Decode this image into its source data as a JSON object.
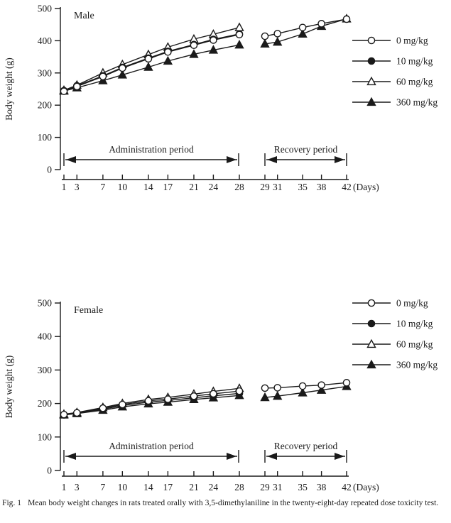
{
  "figure": {
    "caption_label": "Fig. 1",
    "caption_text": "Mean body weight changes in rats treated orally with 3,5-dimethylaniline in the twenty-eight-day repeated dose toxicity test."
  },
  "colors": {
    "ink": "#1a1a1a",
    "background": "#ffffff"
  },
  "legend": [
    {
      "label": "0 mg/kg",
      "marker": "circle-open"
    },
    {
      "label": "10 mg/kg",
      "marker": "circle-filled"
    },
    {
      "label": "60 mg/kg",
      "marker": "triangle-open"
    },
    {
      "label": "360 mg/kg",
      "marker": "triangle-filled"
    }
  ],
  "chart_data": [
    {
      "type": "line",
      "title": "Male",
      "ylabel": "Body weight (g)",
      "x_axis_unit_label": "(Days)",
      "ylim": [
        0,
        500
      ],
      "yticks": [
        0,
        100,
        200,
        300,
        400,
        500
      ],
      "admin_days": [
        1,
        3,
        7,
        10,
        14,
        17,
        21,
        24,
        28
      ],
      "recovery_days": [
        29,
        31,
        35,
        38,
        42
      ],
      "admin_period_label": "Administration period",
      "recovery_period_label": "Recovery period",
      "legend_position": "right",
      "grid": false,
      "series": [
        {
          "name": "0 mg/kg",
          "marker": "circle-open",
          "admin_values": [
            243,
            258,
            289,
            315,
            344,
            365,
            386,
            402,
            419
          ],
          "recovery_values": [
            414,
            422,
            441,
            453,
            467
          ]
        },
        {
          "name": "10 mg/kg",
          "marker": "circle-filled",
          "admin_values": [
            245,
            260,
            291,
            317,
            346,
            367,
            388,
            404,
            421
          ],
          "recovery_values": null
        },
        {
          "name": "60 mg/kg",
          "marker": "triangle-open",
          "admin_values": [
            246,
            262,
            300,
            326,
            357,
            380,
            405,
            420,
            441
          ],
          "recovery_values": null
        },
        {
          "name": "360 mg/kg",
          "marker": "triangle-filled",
          "admin_values": [
            244,
            254,
            276,
            294,
            318,
            337,
            358,
            371,
            387
          ],
          "recovery_values": [
            390,
            396,
            421,
            445,
            468
          ]
        }
      ]
    },
    {
      "type": "line",
      "title": "Female",
      "ylabel": "Body weight (g)",
      "x_axis_unit_label": "(Days)",
      "ylim": [
        0,
        500
      ],
      "yticks": [
        0,
        100,
        200,
        300,
        400,
        500
      ],
      "admin_days": [
        1,
        3,
        7,
        10,
        14,
        17,
        21,
        24,
        28
      ],
      "recovery_days": [
        29,
        31,
        35,
        38,
        42
      ],
      "admin_period_label": "Administration period",
      "recovery_period_label": "Recovery period",
      "legend_position": "right",
      "grid": false,
      "series": [
        {
          "name": "0 mg/kg",
          "marker": "circle-open",
          "admin_values": [
            167,
            172,
            186,
            197,
            208,
            213,
            222,
            229,
            237
          ],
          "recovery_values": [
            246,
            247,
            252,
            255,
            262
          ]
        },
        {
          "name": "10 mg/kg",
          "marker": "circle-filled",
          "admin_values": [
            166,
            171,
            183,
            194,
            204,
            209,
            217,
            223,
            230
          ],
          "recovery_values": null
        },
        {
          "name": "60 mg/kg",
          "marker": "triangle-open",
          "admin_values": [
            168,
            173,
            188,
            200,
            212,
            218,
            228,
            236,
            245
          ],
          "recovery_values": null
        },
        {
          "name": "360 mg/kg",
          "marker": "triangle-filled",
          "admin_values": [
            166,
            170,
            180,
            190,
            199,
            204,
            212,
            217,
            224
          ],
          "recovery_values": [
            218,
            222,
            232,
            240,
            251
          ]
        }
      ]
    }
  ]
}
